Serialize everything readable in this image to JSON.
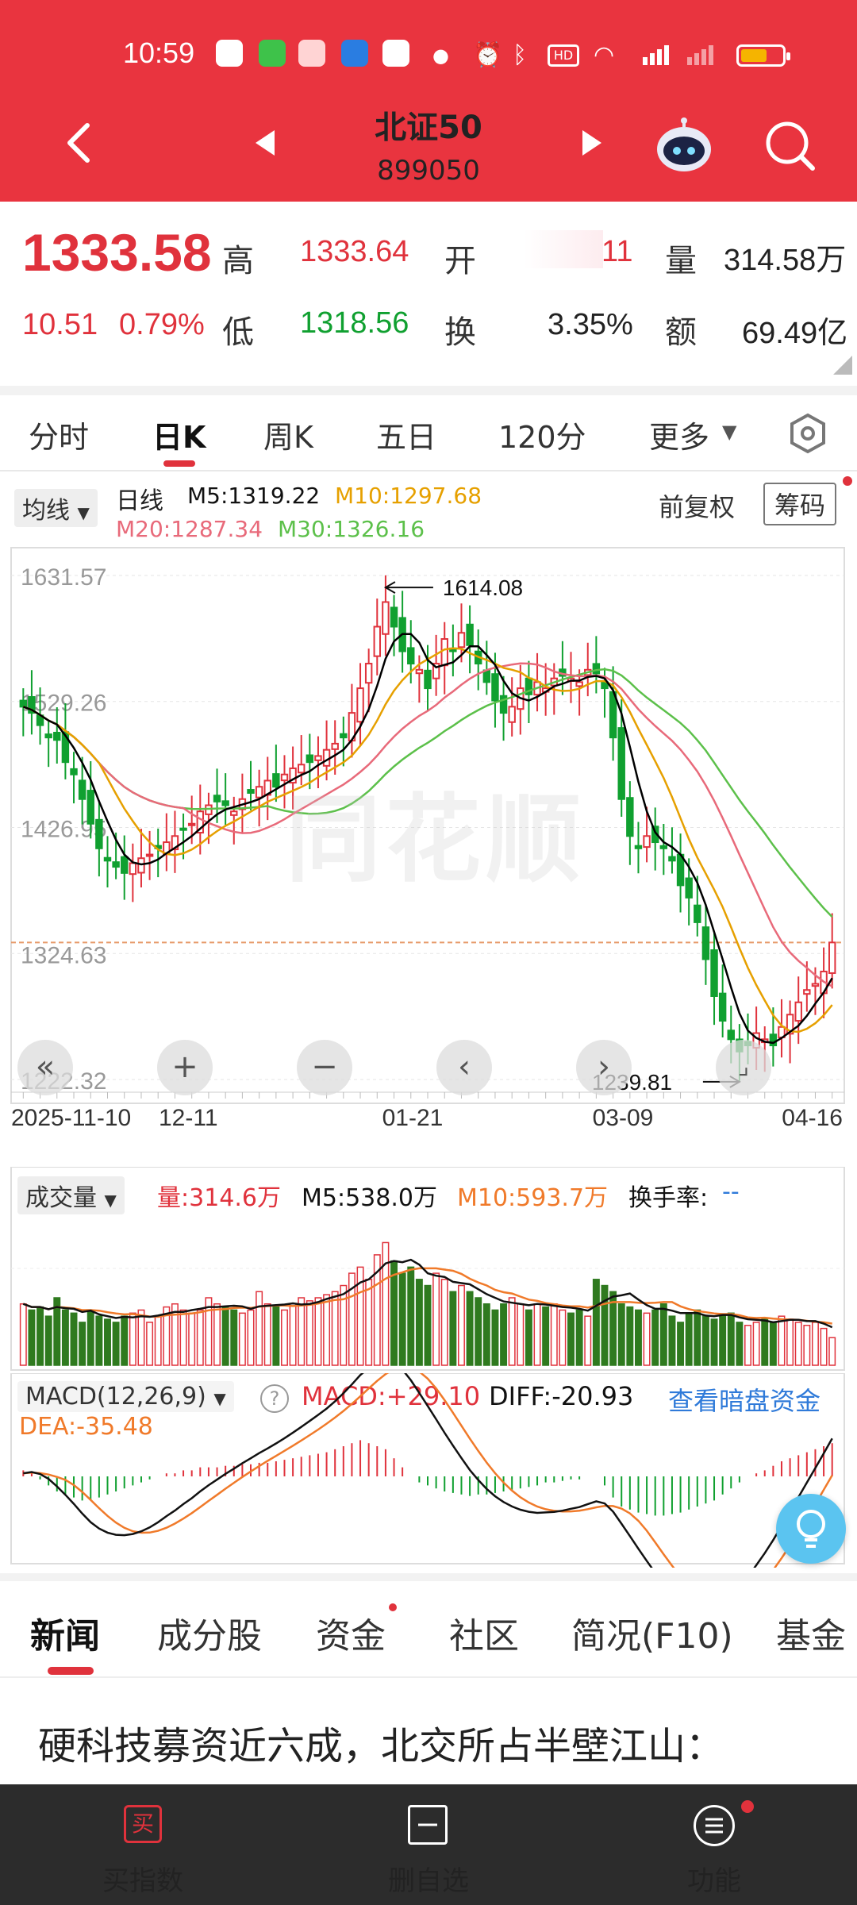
{
  "status_bar": {
    "time": "10:59"
  },
  "header": {
    "title": "北证50",
    "code": "899050"
  },
  "quote": {
    "price": "1333.58",
    "change": "10.51",
    "change_pct": "0.79%",
    "high_label": "高",
    "high": "1333.64",
    "low_label": "低",
    "low": "1318.56",
    "open_label": "开",
    "open": "11",
    "turnover_label": "换",
    "turnover": "3.35%",
    "volume_label": "量",
    "volume": "314.58万",
    "amount_label": "额",
    "amount": "69.49亿"
  },
  "period_tabs": [
    "分时",
    "日K",
    "周K",
    "五日",
    "120分",
    "更多"
  ],
  "active_tab": "日K",
  "kline": {
    "ma_dropdown": "均线",
    "period": "日线",
    "m5": "M5:1319.22",
    "m10": "M10:1297.68",
    "m20": "M20:1287.34",
    "m30": "M30:1326.16",
    "adjust": "前复权",
    "chips": "筹码",
    "high_marker": "1614.08",
    "low_marker": "1239.81",
    "y_ticks": [
      "1631.57",
      "1529.26",
      "1426.95",
      "1324.63",
      "1222.32"
    ],
    "x_ticks": [
      "2025-11-10",
      "12-11",
      "01-21",
      "03-09",
      "04-16"
    ],
    "watermark": "同花顺"
  },
  "volume_panel": {
    "dropdown": "成交量",
    "vol": "量:314.6万",
    "m5": "M5:538.0万",
    "m10": "M10:593.7万",
    "turnover": "换手率:",
    "turnover_val": "--"
  },
  "macd_panel": {
    "dropdown": "MACD(12,26,9)",
    "help": "?",
    "macd": "MACD:+29.10",
    "diff": "DIFF:-20.93",
    "dea": "DEA:-35.48",
    "dark_pool": "查看暗盘资金"
  },
  "news_tabs": [
    "新闻",
    "成分股",
    "资金",
    "社区",
    "简况(F10)",
    "基金"
  ],
  "headline": "硬科技募资近六成，北交所占半壁江山：",
  "bottom_bar": {
    "buy_icon": "买",
    "buy": "买指数",
    "remove": "删自选",
    "func": "功能"
  },
  "colors": {
    "brand_red": "#e9343f",
    "up": "#e0323c",
    "down": "#10a030",
    "ma5": "#000000",
    "ma10": "#e6a000",
    "ma20": "#e86a7a",
    "ma30": "#5cc04a",
    "link_blue": "#2f7ad9"
  },
  "chart_data": {
    "type": "candlestick",
    "y_axis": {
      "ticks": [
        1631.57,
        1529.26,
        1426.95,
        1324.63,
        1222.32
      ],
      "range": [
        1222.32,
        1631.57
      ]
    },
    "x_ticks": [
      "2025-11-10",
      "12-11",
      "01-21",
      "03-09",
      "04-16"
    ],
    "highest": 1614.08,
    "lowest": 1239.81,
    "last": 1333.58,
    "close_series": [
      1525,
      1520,
      1510,
      1500,
      1498,
      1480,
      1470,
      1450,
      1430,
      1410,
      1400,
      1395,
      1390,
      1398,
      1402,
      1405,
      1410,
      1415,
      1420,
      1425,
      1430,
      1440,
      1445,
      1448,
      1445,
      1440,
      1450,
      1455,
      1460,
      1465,
      1460,
      1470,
      1475,
      1478,
      1480,
      1485,
      1490,
      1495,
      1500,
      1520,
      1540,
      1560,
      1590,
      1610,
      1590,
      1570,
      1560,
      1555,
      1540,
      1560,
      1580,
      1570,
      1585,
      1575,
      1560,
      1545,
      1530,
      1520,
      1525,
      1540,
      1535,
      1545,
      1540,
      1548,
      1550,
      1548,
      1545,
      1555,
      1552,
      1540,
      1500,
      1450,
      1420,
      1410,
      1420,
      1415,
      1410,
      1400,
      1380,
      1370,
      1350,
      1320,
      1290,
      1270,
      1255,
      1245,
      1250,
      1260,
      1255,
      1250,
      1265,
      1275,
      1285,
      1295,
      1300,
      1310,
      1333.58
    ],
    "volume_series": [
      1.0,
      0.9,
      0.95,
      0.8,
      1.1,
      0.9,
      0.85,
      0.7,
      0.9,
      0.8,
      0.75,
      0.7,
      0.8,
      0.85,
      0.9,
      0.7,
      0.8,
      0.95,
      1.0,
      0.9,
      0.85,
      0.9,
      1.1,
      1.0,
      0.95,
      0.9,
      0.85,
      0.9,
      1.2,
      1.0,
      0.95,
      0.9,
      1.0,
      1.1,
      1.05,
      1.1,
      1.15,
      1.2,
      1.3,
      1.5,
      1.6,
      1.4,
      1.8,
      2.0,
      1.7,
      1.5,
      1.6,
      1.4,
      1.3,
      1.5,
      1.4,
      1.2,
      1.3,
      1.2,
      1.1,
      1.0,
      0.9,
      1.0,
      1.1,
      1.0,
      0.9,
      1.0,
      0.95,
      1.0,
      0.9,
      0.85,
      0.9,
      0.8,
      1.4,
      1.3,
      1.2,
      1.0,
      0.95,
      0.9,
      0.85,
      0.9,
      1.0,
      0.8,
      0.7,
      0.85,
      0.9,
      0.8,
      0.75,
      0.8,
      0.85,
      0.7,
      0.65,
      0.7,
      0.75,
      0.7,
      0.8,
      0.75,
      0.7,
      0.65,
      0.7,
      0.6,
      0.45
    ],
    "macd_hist": [
      0.2,
      0.1,
      -0.1,
      -0.3,
      -0.5,
      -0.6,
      -0.7,
      -0.8,
      -0.8,
      -0.7,
      -0.6,
      -0.5,
      -0.4,
      -0.3,
      -0.2,
      -0.1,
      0,
      0.1,
      0.1,
      0.2,
      0.2,
      0.3,
      0.3,
      0.3,
      0.35,
      0.35,
      0.4,
      0.4,
      0.45,
      0.45,
      0.5,
      0.55,
      0.6,
      0.65,
      0.7,
      0.75,
      0.8,
      0.9,
      1.0,
      1.1,
      1.2,
      1.1,
      1.0,
      0.9,
      0.6,
      0.3,
      0.0,
      -0.2,
      -0.3,
      -0.4,
      -0.5,
      -0.55,
      -0.6,
      -0.65,
      -0.6,
      -0.6,
      -0.55,
      -0.5,
      -0.45,
      -0.4,
      -0.35,
      -0.3,
      -0.2,
      -0.2,
      -0.15,
      -0.1,
      -0.1,
      0.0,
      0.0,
      -0.3,
      -0.7,
      -1.0,
      -1.1,
      -1.2,
      -1.25,
      -1.3,
      -1.3,
      -1.25,
      -1.2,
      -1.1,
      -1.0,
      -0.9,
      -0.8,
      -0.6,
      -0.4,
      -0.2,
      0.0,
      0.1,
      0.2,
      0.35,
      0.5,
      0.6,
      0.7,
      0.8,
      0.9,
      1.0,
      1.1
    ]
  }
}
